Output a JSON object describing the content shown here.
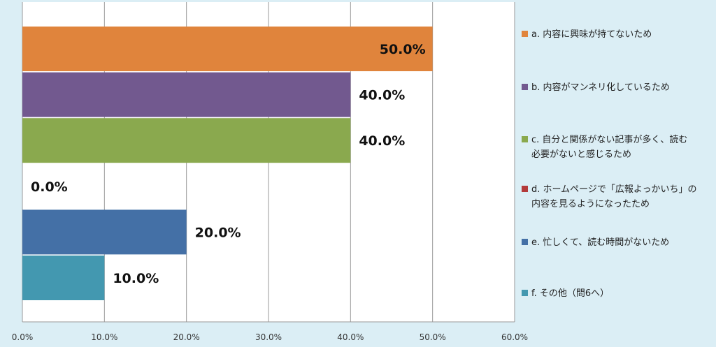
{
  "chart_data": {
    "type": "bar",
    "orientation": "horizontal",
    "categories": [
      "a. 内容に興味が持てないため",
      "b. 内容がマンネリ化しているため",
      "c. 自分と関係がない記事が多く、読む必要がないと感じるため",
      "d. ホームページで「広報よっかいち」の内容を見るようになったため",
      "e. 忙しくて、読む時間がないため",
      "f. その他（問6へ）"
    ],
    "legend_lines": [
      [
        "a. 内容に興味が持てないため"
      ],
      [
        "b. 内容がマンネリ化しているため"
      ],
      [
        "c. 自分と関係がない記事が多く、読む",
        "必要がないと感じるため"
      ],
      [
        "d. ホームページで「広報よっかいち」の",
        "内容を見るようになったため"
      ],
      [
        "e. 忙しくて、読む時間がないため"
      ],
      [
        "f. その他（問6へ）"
      ]
    ],
    "values": [
      50.0,
      40.0,
      40.0,
      0.0,
      20.0,
      10.0
    ],
    "value_labels": [
      "50.0%",
      "40.0%",
      "40.0%",
      "0.0%",
      "20.0%",
      "10.0%"
    ],
    "colors": [
      "#e0843c",
      "#72598f",
      "#8aa94e",
      "#b33a3a",
      "#4470a6",
      "#4398b0"
    ],
    "xlim": [
      0,
      60
    ],
    "xticks": [
      0,
      10,
      20,
      30,
      40,
      50,
      60
    ],
    "xtick_labels": [
      "0.0%",
      "10.0%",
      "20.0%",
      "30.0%",
      "40.0%",
      "50.0%",
      "60.0%"
    ],
    "grid": true,
    "legend_position": "right"
  }
}
